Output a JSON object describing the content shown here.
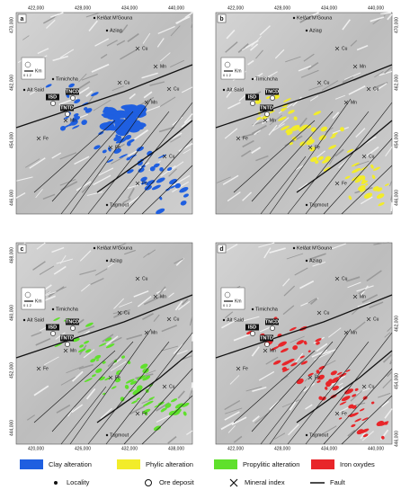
{
  "panels": [
    {
      "label": "a",
      "color": "#1f5fe0",
      "xticks": [
        "422,000",
        "428,000",
        "434,000",
        "440,000"
      ],
      "yticks": [
        "470,000",
        "462,000",
        "454,000",
        "446,000"
      ]
    },
    {
      "label": "b",
      "color": "#f2ec2a",
      "xticks": [
        "422,000",
        "428,000",
        "434,000",
        "440,000"
      ],
      "yticks": [
        "470,000",
        "462,000",
        "454,000",
        "446,000"
      ]
    },
    {
      "label": "c",
      "color": "#5fe02c",
      "xticks": [
        "420,000",
        "426,000",
        "432,000",
        "438,000"
      ],
      "yticks": [
        "468,000",
        "460,000",
        "452,000",
        "444,000"
      ]
    },
    {
      "label": "d",
      "color": "#e8262a",
      "xticks": [
        "422,000",
        "428,000",
        "434,000",
        "440,000"
      ],
      "yticks": [
        "462,000",
        "454,000",
        "446,000"
      ]
    }
  ],
  "places": [
    "Kelâat M'Gouna",
    "Aziag",
    "Timichcha",
    "Ait Said",
    "Tagmout"
  ],
  "deposits": [
    "ISD",
    "TNCD",
    "TNTD"
  ],
  "minerals": [
    "Cu",
    "Mn",
    "Cu",
    "Fe",
    "Mn",
    "Cu",
    "Fe",
    "Mn",
    "Cu",
    "Fe"
  ],
  "scale": {
    "unit": "Km",
    "label": "0  1  2"
  },
  "legend": {
    "alteration": [
      "Clay alteration",
      "Phylic alteration",
      "Propylitic alteration",
      "Iron oxydes"
    ],
    "symbols": [
      "Locality",
      "Ore deposit",
      "Mineral index",
      "Fault"
    ]
  }
}
